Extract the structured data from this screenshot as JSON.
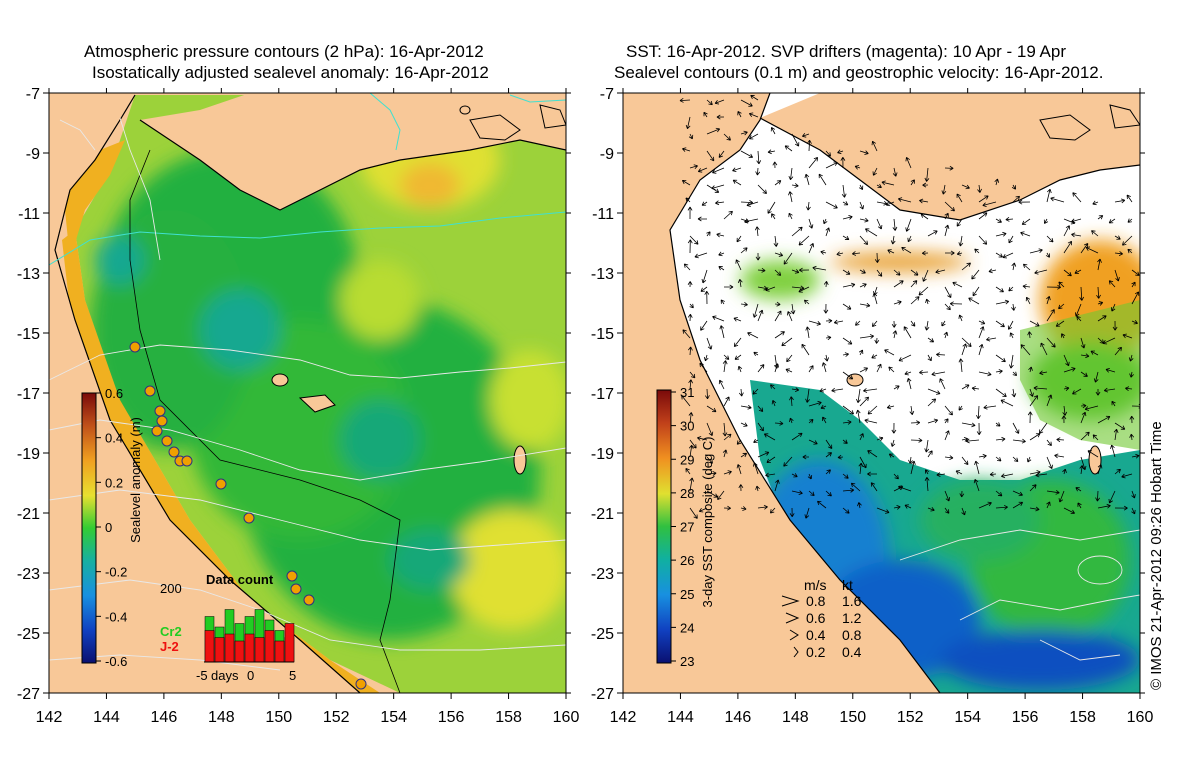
{
  "left_panel": {
    "title_line1": "Atmospheric pressure contours (2 hPa): 16-Apr-2012",
    "title_line2": "Isostatically adjusted sealevel anomaly: 16-Apr-2012",
    "x_ticks": [
      "142",
      "144",
      "146",
      "148",
      "150",
      "152",
      "154",
      "156",
      "158",
      "160"
    ],
    "y_ticks": [
      "-7",
      "-9",
      "-11",
      "-13",
      "-15",
      "-17",
      "-19",
      "-21",
      "-23",
      "-25",
      "-27"
    ],
    "colorbar": {
      "label": "Sealevel anomaly (m)",
      "ticks": [
        "0.6",
        "0.4",
        "0.2",
        "0",
        "-0.2",
        "-0.4",
        "-0.6"
      ],
      "range": [
        -0.6,
        0.6
      ]
    },
    "data_count": {
      "title": "Data count",
      "ymax_label": "200",
      "x_labels": [
        "-5",
        "days",
        "0",
        "5"
      ],
      "series": [
        {
          "name": "Cr2",
          "color": "#22cc22",
          "values": [
            130,
            100,
            150,
            110,
            130,
            150,
            120,
            90,
            70
          ]
        },
        {
          "name": "J-2",
          "color": "#ee1111",
          "values": [
            90,
            70,
            80,
            60,
            80,
            70,
            90,
            60,
            110
          ]
        }
      ]
    }
  },
  "right_panel": {
    "title_line1": "SST: 16-Apr-2012. SVP drifters (magenta): 10 Apr - 19 Apr",
    "title_line2": "Sealevel contours (0.1 m) and geostrophic velocity: 16-Apr-2012.",
    "x_ticks": [
      "142",
      "144",
      "146",
      "148",
      "150",
      "152",
      "154",
      "156",
      "158",
      "160"
    ],
    "y_ticks": [
      "-7",
      "-9",
      "-11",
      "-13",
      "-15",
      "-17",
      "-19",
      "-21",
      "-23",
      "-25",
      "-27"
    ],
    "colorbar": {
      "label": "3-day SST composite (deg C)",
      "ticks": [
        "31",
        "30",
        "29",
        "28",
        "27",
        "26",
        "25",
        "24",
        "23"
      ],
      "range": [
        23,
        31
      ]
    },
    "velocity_legend": {
      "header_ms": "m/s",
      "header_kt": "kt",
      "rows": [
        {
          "ms": "0.8",
          "kt": "1.6"
        },
        {
          "ms": "0.6",
          "kt": "1.2"
        },
        {
          "ms": "0.4",
          "kt": "0.8"
        },
        {
          "ms": "0.2",
          "kt": "0.4"
        }
      ]
    }
  },
  "copyright": "© IMOS 21-Apr-2012 09:26 Hobart Time",
  "colors": {
    "land": "#f8c898",
    "cloud": "#ffffff",
    "coast": "#000000",
    "contour": "#dcdcdc",
    "pressure_contour": "#40e0d0"
  }
}
